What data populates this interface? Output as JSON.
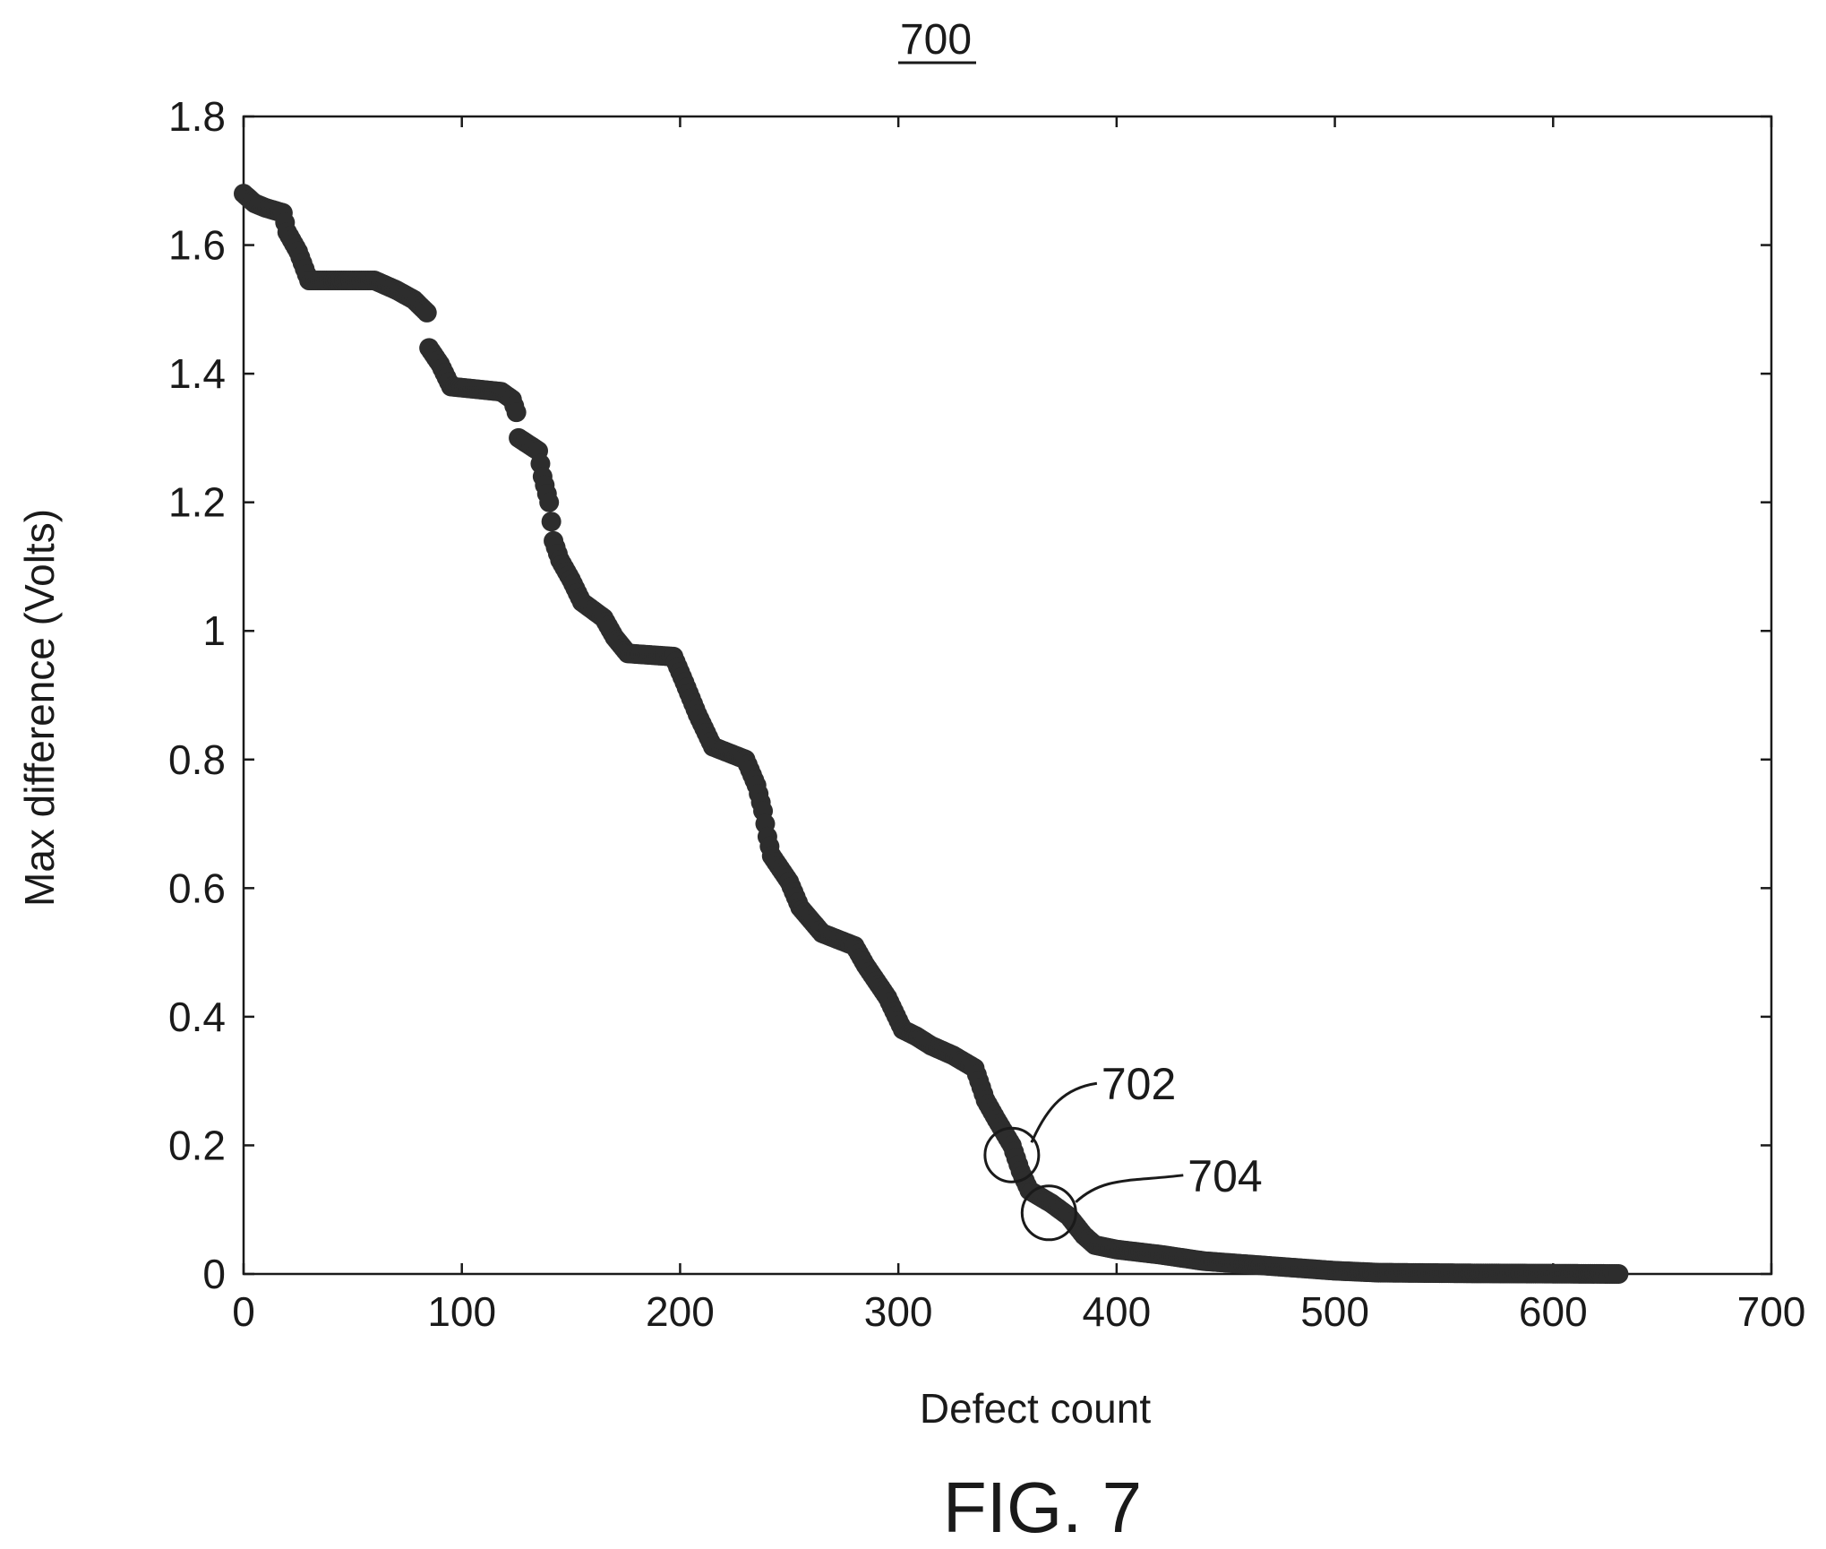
{
  "figure_number": "700",
  "caption": "FIG. 7",
  "colors": {
    "ink": "#1a1a1a",
    "marker": "#2d2d2d",
    "background": "#ffffff"
  },
  "chart_data": {
    "type": "scatter",
    "xlabel": "Defect count",
    "ylabel": "Max difference (Volts)",
    "xlim": [
      0,
      700
    ],
    "ylim": [
      0,
      1.8
    ],
    "xticks": [
      0,
      100,
      200,
      300,
      400,
      500,
      600,
      700
    ],
    "yticks": [
      0,
      0.2,
      0.4,
      0.6,
      0.8,
      1,
      1.2,
      1.4,
      1.6,
      1.8
    ],
    "xtick_labels": [
      "0",
      "100",
      "200",
      "300",
      "400",
      "500",
      "600",
      "700"
    ],
    "ytick_labels": [
      "0",
      "0.2",
      "0.4",
      "0.6",
      "0.8",
      "1",
      "1.2",
      "1.4",
      "1.6",
      "1.8"
    ],
    "grid": false,
    "legend": "none",
    "curve_breakpoints": [
      [
        0,
        1.68
      ],
      [
        5,
        1.665
      ],
      [
        10,
        1.658
      ],
      [
        18,
        1.65
      ],
      [
        20,
        1.62
      ],
      [
        25,
        1.59
      ],
      [
        30,
        1.545
      ],
      [
        60,
        1.545
      ],
      [
        70,
        1.53
      ],
      [
        78,
        1.515
      ],
      [
        84,
        1.495
      ],
      [
        85,
        1.44
      ],
      [
        90,
        1.415
      ],
      [
        95,
        1.38
      ],
      [
        118,
        1.372
      ],
      [
        123,
        1.36
      ],
      [
        125,
        1.34
      ],
      [
        126,
        1.3
      ],
      [
        135,
        1.28
      ],
      [
        137,
        1.24
      ],
      [
        140,
        1.2
      ],
      [
        142,
        1.14
      ],
      [
        145,
        1.11
      ],
      [
        150,
        1.08
      ],
      [
        155,
        1.045
      ],
      [
        165,
        1.02
      ],
      [
        170,
        0.99
      ],
      [
        176,
        0.965
      ],
      [
        197,
        0.96
      ],
      [
        202,
        0.92
      ],
      [
        208,
        0.87
      ],
      [
        215,
        0.82
      ],
      [
        230,
        0.8
      ],
      [
        235,
        0.76
      ],
      [
        238,
        0.72
      ],
      [
        240,
        0.68
      ],
      [
        242,
        0.65
      ],
      [
        250,
        0.61
      ],
      [
        255,
        0.57
      ],
      [
        265,
        0.53
      ],
      [
        280,
        0.51
      ],
      [
        285,
        0.48
      ],
      [
        295,
        0.43
      ],
      [
        302,
        0.38
      ],
      [
        308,
        0.37
      ],
      [
        315,
        0.355
      ],
      [
        325,
        0.34
      ],
      [
        335,
        0.32
      ],
      [
        340,
        0.27
      ],
      [
        345,
        0.24
      ],
      [
        352,
        0.2
      ],
      [
        356,
        0.16
      ],
      [
        360,
        0.13
      ],
      [
        370,
        0.11
      ],
      [
        378,
        0.09
      ],
      [
        385,
        0.06
      ],
      [
        390,
        0.045
      ],
      [
        400,
        0.038
      ],
      [
        420,
        0.03
      ],
      [
        440,
        0.02
      ],
      [
        460,
        0.015
      ],
      [
        480,
        0.01
      ],
      [
        500,
        0.005
      ],
      [
        520,
        0.002
      ],
      [
        560,
        0.001
      ],
      [
        630,
        0.0
      ]
    ],
    "annotations": [
      {
        "label": "702",
        "x": 352,
        "y": 0.185
      },
      {
        "label": "704",
        "x": 369,
        "y": 0.095
      }
    ]
  }
}
